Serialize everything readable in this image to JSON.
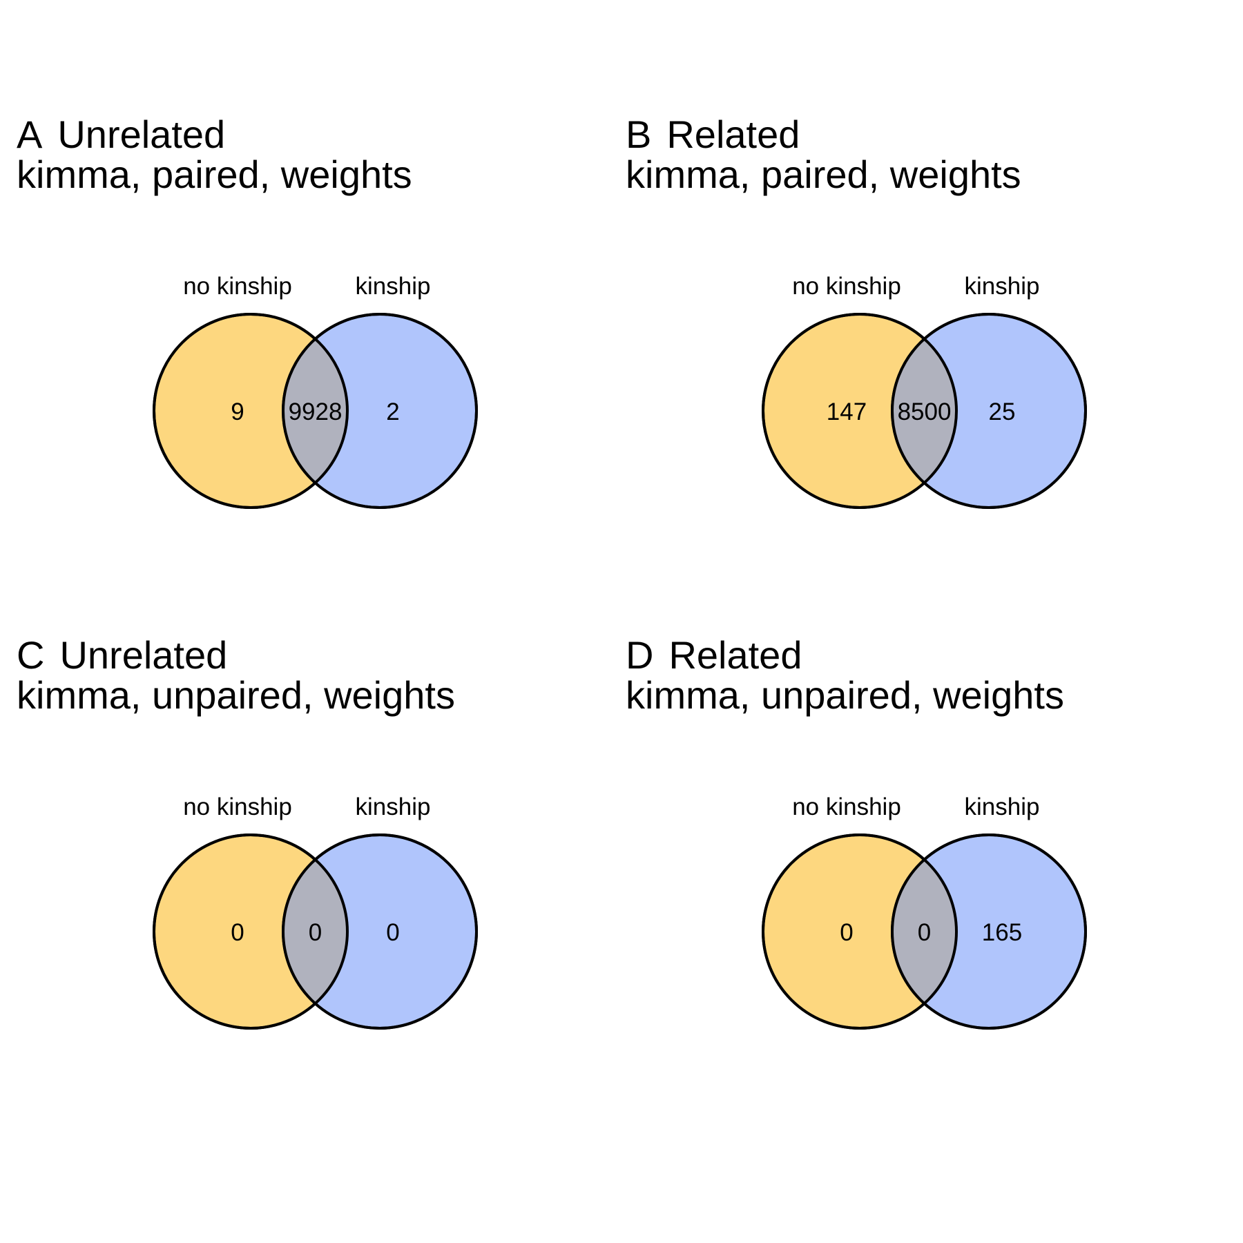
{
  "colors": {
    "set_a": "#FDD77F",
    "set_b": "#B0C5FC",
    "overlap": "#B0B2BE",
    "outline": "#000000"
  },
  "panels": [
    {
      "letter": "A",
      "group": "Unrelated",
      "subtitle": "kimma, paired, weights",
      "set_a_label": "no kinship",
      "set_b_label": "kinship",
      "only_a": "9",
      "both": "9928",
      "only_b": "2"
    },
    {
      "letter": "B",
      "group": "Related",
      "subtitle": "kimma, paired, weights",
      "set_a_label": "no kinship",
      "set_b_label": "kinship",
      "only_a": "147",
      "both": "8500",
      "only_b": "25"
    },
    {
      "letter": "C",
      "group": "Unrelated",
      "subtitle": "kimma, unpaired, weights",
      "set_a_label": "no kinship",
      "set_b_label": "kinship",
      "only_a": "0",
      "both": "0",
      "only_b": "0"
    },
    {
      "letter": "D",
      "group": "Related",
      "subtitle": "kimma, unpaired, weights",
      "set_a_label": "no kinship",
      "set_b_label": "kinship",
      "only_a": "0",
      "both": "0",
      "only_b": "165"
    }
  ]
}
